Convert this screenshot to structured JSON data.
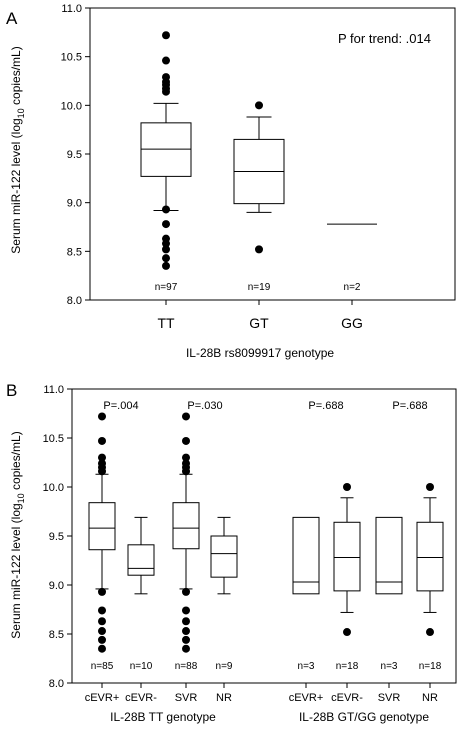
{
  "chart_data": [
    {
      "type": "box",
      "panel": "A",
      "ylabel_main": "Serum miR-122 level (log",
      "ylabel_sub": "10",
      "ylabel_tail": " copies/mL)",
      "xlabel": "IL-28B rs8099917 genotype",
      "annotation": "P for trend: .014",
      "ylim": [
        8.0,
        11.0
      ],
      "yticks": [
        "8.0",
        "8.5",
        "9.0",
        "9.5",
        "10.0",
        "10.5",
        "11.0"
      ],
      "categories": [
        "TT",
        "GT",
        "GG"
      ],
      "boxes": [
        {
          "label": "TT",
          "n": "n=97",
          "q1": 9.27,
          "median": 9.55,
          "q3": 9.82,
          "whisker_low": 8.92,
          "whisker_high": 10.02,
          "outliers": [
            10.72,
            10.46,
            10.29,
            10.24,
            10.21,
            10.17,
            10.14,
            8.93,
            8.78,
            8.63,
            8.58,
            8.52,
            8.43,
            8.35
          ]
        },
        {
          "label": "GT",
          "n": "n=19",
          "q1": 8.99,
          "median": 9.32,
          "q3": 9.65,
          "whisker_low": 8.9,
          "whisker_high": 9.88,
          "outliers": [
            10.0,
            8.52
          ]
        },
        {
          "label": "GG",
          "n": "n=2",
          "line": 8.78
        }
      ]
    },
    {
      "type": "box",
      "panel": "B",
      "ylabel_main": "Serum miR-122 level (log",
      "ylabel_sub": "10",
      "ylabel_tail": " copies/mL)",
      "ylim": [
        8.0,
        11.0
      ],
      "yticks": [
        "8.0",
        "8.5",
        "9.0",
        "9.5",
        "10.0",
        "10.5",
        "11.0"
      ],
      "group_labels": [
        "IL-28B TT genotype",
        "IL-28B GT/GG genotype"
      ],
      "p_values": [
        {
          "text": "P=.004",
          "group": 0
        },
        {
          "text": "P=.030",
          "group": 0
        },
        {
          "text": "P=.688",
          "group": 1
        },
        {
          "text": "P=.688",
          "group": 1
        }
      ],
      "boxes": [
        {
          "label": "cEVR+",
          "n": "n=85",
          "q1": 9.36,
          "median": 9.58,
          "q3": 9.84,
          "whisker_low": 8.96,
          "whisker_high": 10.13,
          "outliers": [
            10.72,
            10.47,
            10.3,
            10.24,
            10.2,
            10.16,
            8.93,
            8.74,
            8.63,
            8.53,
            8.44,
            8.35
          ]
        },
        {
          "label": "cEVR-",
          "n": "n=10",
          "q1": 9.1,
          "median": 9.17,
          "q3": 9.41,
          "whisker_low": 8.91,
          "whisker_high": 9.69,
          "outliers": []
        },
        {
          "label": "SVR",
          "n": "n=88",
          "q1": 9.37,
          "median": 9.58,
          "q3": 9.84,
          "whisker_low": 8.96,
          "whisker_high": 10.13,
          "outliers": [
            10.72,
            10.47,
            10.3,
            10.24,
            10.2,
            10.16,
            8.93,
            8.74,
            8.63,
            8.53,
            8.44,
            8.35
          ]
        },
        {
          "label": "NR",
          "n": "n=9",
          "q1": 9.08,
          "median": 9.32,
          "q3": 9.5,
          "whisker_low": 8.91,
          "whisker_high": 9.69,
          "outliers": []
        },
        {
          "label": "cEVR+",
          "n": "n=3",
          "q1": 8.91,
          "median": 9.03,
          "q3": 9.69,
          "outliers": []
        },
        {
          "label": "cEVR-",
          "n": "n=18",
          "q1": 8.94,
          "median": 9.28,
          "q3": 9.64,
          "whisker_low": 8.72,
          "whisker_high": 9.89,
          "outliers": [
            10.0,
            8.52
          ]
        },
        {
          "label": "SVR",
          "n": "n=3",
          "q1": 8.91,
          "median": 9.03,
          "q3": 9.69,
          "outliers": []
        },
        {
          "label": "NR",
          "n": "n=18",
          "q1": 8.94,
          "median": 9.28,
          "q3": 9.64,
          "whisker_low": 8.72,
          "whisker_high": 9.89,
          "outliers": [
            10.0,
            8.52
          ]
        }
      ]
    }
  ]
}
